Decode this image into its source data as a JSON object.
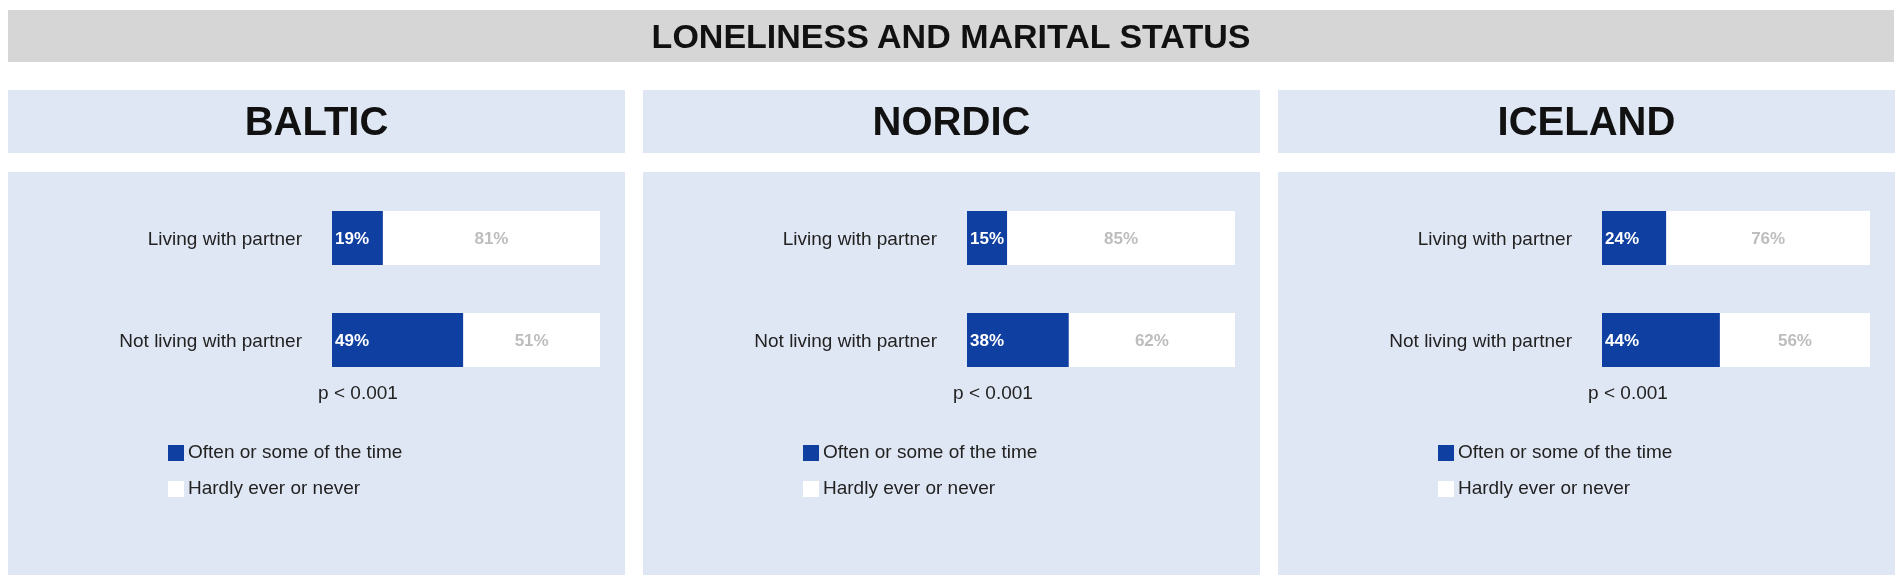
{
  "chart_data": [
    {
      "type": "other",
      "title": "LONELINESS AND MARITAL STATUS"
    },
    {
      "type": "bar",
      "title": "BALTIC",
      "orientation": "horizontal",
      "stacked": true,
      "categories": [
        "Living with partner",
        "Not living with partner"
      ],
      "series": [
        {
          "name": "Often or some of the time",
          "color": "#0f3fa0",
          "values": [
            19,
            49
          ],
          "value_labels": [
            "19%",
            "49%"
          ]
        },
        {
          "name": "Hardly ever or never",
          "color": "#ffffff",
          "values": [
            81,
            51
          ],
          "value_labels": [
            "81%",
            "51%"
          ]
        }
      ],
      "annotations": [
        "p < 0.001"
      ],
      "legend": "bottom"
    },
    {
      "type": "bar",
      "title": "NORDIC",
      "orientation": "horizontal",
      "stacked": true,
      "categories": [
        "Living with partner",
        "Not living with partner"
      ],
      "series": [
        {
          "name": "Often or some of the time",
          "color": "#0f3fa0",
          "values": [
            15,
            38
          ],
          "value_labels": [
            "15%",
            "38%"
          ]
        },
        {
          "name": "Hardly ever or never",
          "color": "#ffffff",
          "values": [
            85,
            62
          ],
          "value_labels": [
            "85%",
            "62%"
          ]
        }
      ],
      "annotations": [
        "p < 0.001"
      ],
      "legend": "bottom"
    },
    {
      "type": "bar",
      "title": "ICELAND",
      "orientation": "horizontal",
      "stacked": true,
      "categories": [
        "Living with partner",
        "Not living with partner"
      ],
      "series": [
        {
          "name": "Often or some of the time",
          "color": "#0f3fa0",
          "values": [
            24,
            44
          ],
          "value_labels": [
            "24%",
            "44%"
          ]
        },
        {
          "name": "Hardly ever or never",
          "color": "#ffffff",
          "values": [
            76,
            56
          ],
          "value_labels": [
            "76%",
            "56%"
          ]
        }
      ],
      "annotations": [
        "p < 0.001"
      ],
      "legend": "bottom"
    }
  ]
}
